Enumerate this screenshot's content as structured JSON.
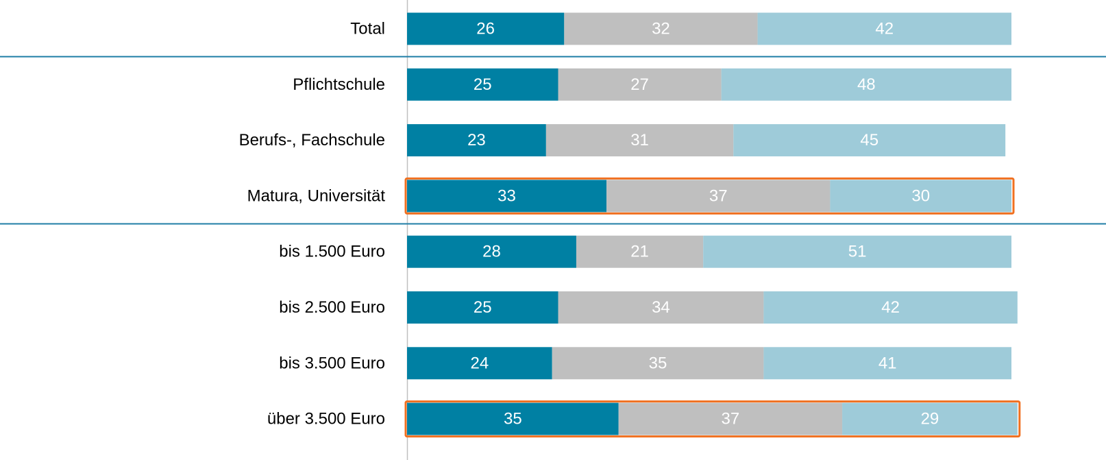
{
  "chart_data": {
    "type": "stacked-bar-horizontal",
    "categories": [
      "Total",
      "Pflichtschule",
      "Berufs-, Fachschule",
      "Matura, Universität",
      "bis 1.500 Euro",
      "bis 2.500 Euro",
      "bis 3.500 Euro",
      "über 3.500 Euro"
    ],
    "series": [
      {
        "color": "#0080a3",
        "values": [
          26,
          25,
          23,
          33,
          28,
          25,
          24,
          35
        ]
      },
      {
        "color": "#bfbfbf",
        "values": [
          32,
          27,
          31,
          37,
          21,
          34,
          35,
          37
        ]
      },
      {
        "color": "#9ecbd9",
        "values": [
          42,
          48,
          45,
          30,
          51,
          42,
          41,
          29
        ]
      }
    ],
    "xlim": [
      0,
      100
    ],
    "separators_before": [
      1,
      4
    ],
    "highlight": [
      3,
      7
    ],
    "highlight_color": "#f07020",
    "separator_color": "#1f7ea6"
  }
}
